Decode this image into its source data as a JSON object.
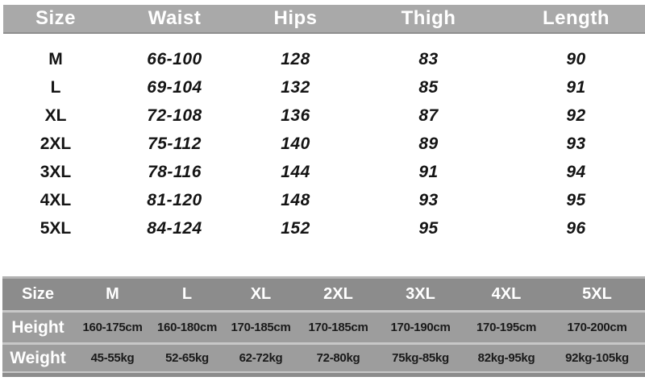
{
  "colors": {
    "top_header_gray": "#a9a9a9",
    "hw_header_gray": "#8c8c8c",
    "hw_row_gray": "#9d9d9d",
    "separator_gray": "#c8c8c8",
    "header_text": "#ffffff",
    "value_text": "#1a1a1a",
    "background": "#ffffff"
  },
  "chart_data": [
    {
      "type": "table",
      "columns": [
        "Size",
        "Waist",
        "Hips",
        "Thigh",
        "Length"
      ],
      "rows": [
        [
          "M",
          "66-100",
          "128",
          "83",
          "90"
        ],
        [
          "L",
          "69-104",
          "132",
          "85",
          "91"
        ],
        [
          "XL",
          "72-108",
          "136",
          "87",
          "92"
        ],
        [
          "2XL",
          "75-112",
          "140",
          "89",
          "93"
        ],
        [
          "3XL",
          "78-116",
          "144",
          "91",
          "94"
        ],
        [
          "4XL",
          "81-120",
          "148",
          "93",
          "95"
        ],
        [
          "5XL",
          "84-124",
          "152",
          "95",
          "96"
        ]
      ]
    },
    {
      "type": "table",
      "columns": [
        "Size",
        "M",
        "L",
        "XL",
        "2XL",
        "3XL",
        "4XL",
        "5XL"
      ],
      "rows": [
        [
          "Height",
          "160-175cm",
          "160-180cm",
          "170-185cm",
          "170-185cm",
          "170-190cm",
          "170-195cm",
          "170-200cm"
        ],
        [
          "Weight",
          "45-55kg",
          "52-65kg",
          "62-72kg",
          "72-80kg",
          "75kg-85kg",
          "82kg-95kg",
          "92kg-105kg"
        ]
      ]
    }
  ]
}
